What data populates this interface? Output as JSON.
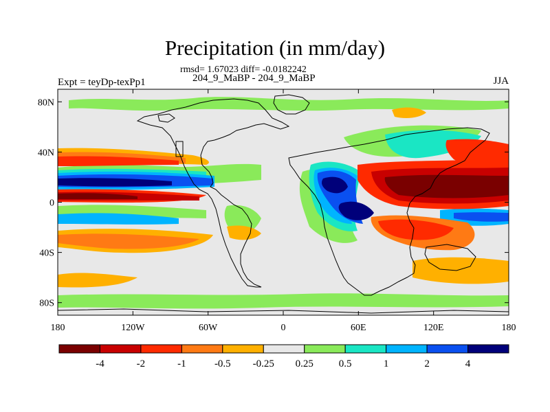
{
  "figure": {
    "title": "Precipitation (in mm/day)",
    "stats_line": "rmsd= 1.67023 diff= -0.0182242",
    "comparison": "204_9_MaBP - 204_9_MaBP",
    "experiment": "Expt = teyDp-texPp1",
    "season": "JJA"
  },
  "map": {
    "projection": "cylindrical-equidistant",
    "lon_range": [
      -180,
      180
    ],
    "lat_range": [
      -90,
      90
    ],
    "background_color": "#e8e8e8",
    "lon_ticks": [
      {
        "value": -180,
        "label": "180"
      },
      {
        "value": -120,
        "label": "120W"
      },
      {
        "value": -60,
        "label": "60W"
      },
      {
        "value": 0,
        "label": "0"
      },
      {
        "value": 60,
        "label": "60E"
      },
      {
        "value": 120,
        "label": "120E"
      },
      {
        "value": 180,
        "label": "180"
      }
    ],
    "lat_ticks": [
      {
        "value": 80,
        "label": "80N"
      },
      {
        "value": 40,
        "label": "40N"
      },
      {
        "value": 0,
        "label": "0"
      },
      {
        "value": -40,
        "label": "40S"
      },
      {
        "value": -80,
        "label": "80S"
      }
    ]
  },
  "colorbar": {
    "colors": [
      "#7a0000",
      "#c80000",
      "#ff2a00",
      "#ff7a14",
      "#ffb000",
      "#e8e8e8",
      "#8aea5a",
      "#1ae6c4",
      "#00b4ff",
      "#0a50f0",
      "#00007a"
    ],
    "boundaries": [
      "-4",
      "-2",
      "-1",
      "-0.5",
      "-0.25",
      "0.25",
      "0.5",
      "1",
      "2",
      "4"
    ]
  }
}
